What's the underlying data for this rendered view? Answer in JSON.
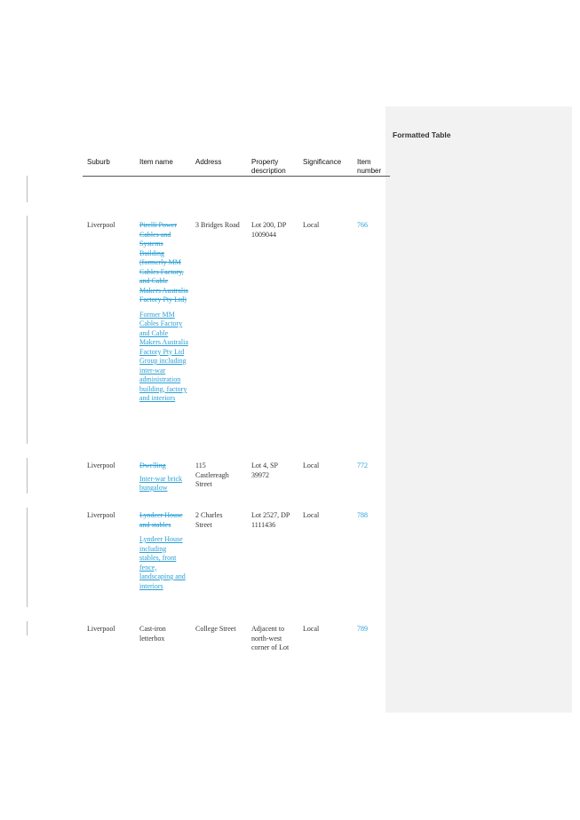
{
  "comment_pane": {
    "title": "Formatted Table"
  },
  "table": {
    "headers": {
      "suburb": "Suburb",
      "item_name": "Item name",
      "address": "Address",
      "property_line1": "Property",
      "property_line2": "description",
      "significance": "Significance",
      "item_line1": "Item",
      "item_line2": "number"
    },
    "rows": [
      {
        "suburb": "Liverpool",
        "name_deleted": "Pirelli Power Cables and Systems Building (formerly MM Cables Factory, and Cable Makers Australia Factory Pty Ltd)",
        "name_inserted": "Former MM Cables Factory and Cable Makers Australia Factory Pty Ltd Group including inter-war administration building, factory and interiors",
        "address": "3 Bridges Road",
        "property": "Lot 200, DP 1009044",
        "significance": "Local",
        "item_number": "766"
      },
      {
        "suburb": "Liverpool",
        "name_deleted": "Dwelling",
        "name_inserted": "Inter-war brick bungalow",
        "address": "115 Castlereagh Street",
        "property": "Lot 4, SP 39972",
        "significance": "Local",
        "item_number": "772"
      },
      {
        "suburb": "Liverpool",
        "name_deleted": "Lyndeer House and stables",
        "name_inserted": "Lyndeer House including stables, front fence, landscaping and interiors",
        "address": "2 Charles Street",
        "property": "Lot 2527, DP 1111436",
        "significance": "Local",
        "item_number": "788"
      },
      {
        "suburb": "Liverpool",
        "name_plain": "Cast-iron letterbox",
        "address": "College Street",
        "property": "Adjacent to north-west corner of Lot",
        "significance": "Local",
        "item_number": "789"
      }
    ]
  }
}
